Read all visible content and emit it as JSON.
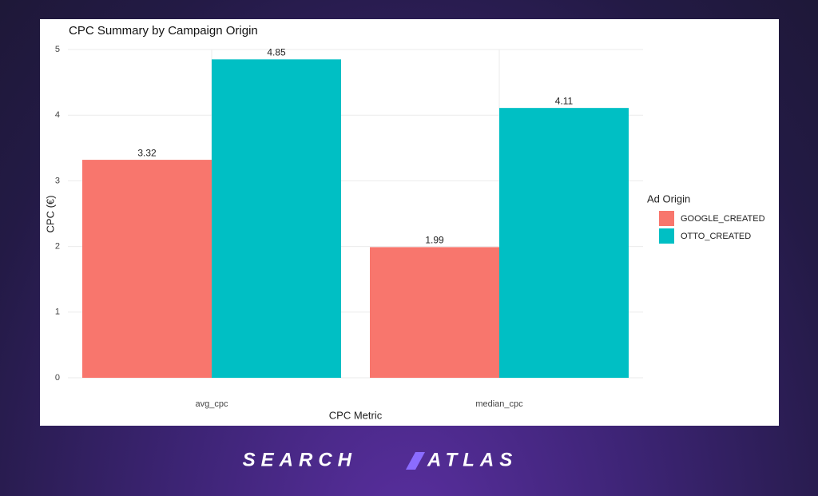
{
  "chart_data": {
    "type": "bar",
    "title": "CPC Summary by Campaign Origin",
    "x_label": "CPC Metric",
    "y_label": "CPC (€)",
    "categories": [
      "avg_cpc",
      "median_cpc"
    ],
    "series": [
      {
        "name": "GOOGLE_CREATED",
        "color": "#F8766D",
        "values": [
          3.32,
          1.99
        ]
      },
      {
        "name": "OTTO_CREATED",
        "color": "#00BFC4",
        "values": [
          4.85,
          4.11
        ]
      }
    ],
    "ylim": [
      0,
      5
    ],
    "yticks": [
      0,
      1,
      2,
      3,
      4,
      5
    ],
    "grid": true,
    "legend_title": "Ad Origin",
    "legend_position": "right"
  },
  "branding": {
    "left": "SEARCH",
    "right": "ATLAS"
  }
}
